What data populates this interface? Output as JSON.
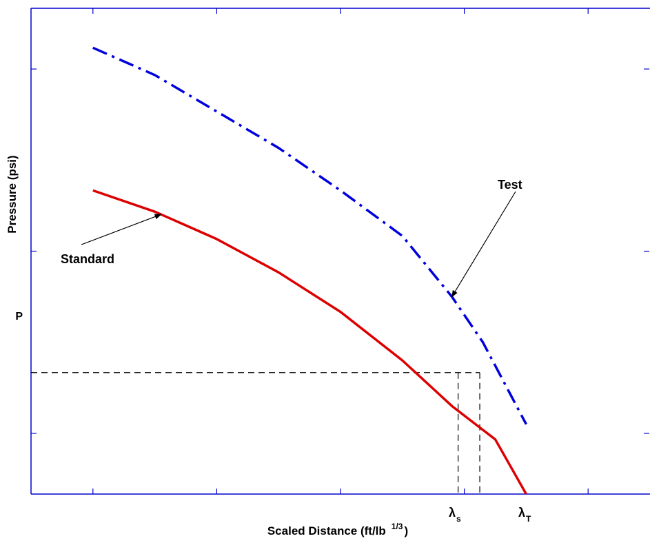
{
  "chart_data": {
    "type": "line",
    "title": "",
    "xlabel": "Scaled Distance (ft/lb",
    "xlabel_exponent": "1/3",
    "xlabel_close": ")",
    "ylabel": "Pressure (psi)",
    "xlim": [
      0,
      10
    ],
    "ylim": [
      0,
      8
    ],
    "x_ticks": [
      0,
      1,
      2,
      3,
      4,
      5,
      6,
      7,
      8,
      9,
      10
    ],
    "y_ticks": [
      0,
      1,
      2,
      3,
      4,
      5,
      6,
      7,
      8
    ],
    "grid": false,
    "colors": {
      "axes": "#0000cc",
      "standard": "#dd0000",
      "test": "#0000dd",
      "reference": "#000000"
    },
    "series": [
      {
        "name": "Standard",
        "x": [
          1.0,
          2.0,
          3.0,
          4.0,
          5.0,
          6.0,
          6.8,
          7.5,
          8.0
        ],
        "y": [
          5.0,
          4.65,
          4.2,
          3.65,
          3.0,
          2.2,
          1.45,
          0.9,
          0.0
        ]
      },
      {
        "name": "Test",
        "x": [
          1.0,
          2.0,
          3.0,
          4.0,
          5.0,
          6.0,
          6.8,
          7.3,
          8.0
        ],
        "y": [
          7.35,
          6.9,
          6.3,
          5.7,
          5.0,
          4.25,
          3.25,
          2.5,
          1.15
        ]
      }
    ],
    "reference_lines": {
      "p_level": 2.0,
      "p_label": "P",
      "lambda_s": 6.9,
      "lambda_s_symbol": "λ",
      "lambda_s_subscript": "s",
      "lambda_t": 7.25,
      "lambda_t_symbol": "λ",
      "lambda_t_subscript": "T"
    },
    "annotations": [
      {
        "text": "Standard",
        "series": "Standard",
        "arrow_to_x": 2.1
      },
      {
        "text": "Test",
        "series": "Test",
        "arrow_to_x": 6.8
      }
    ]
  }
}
